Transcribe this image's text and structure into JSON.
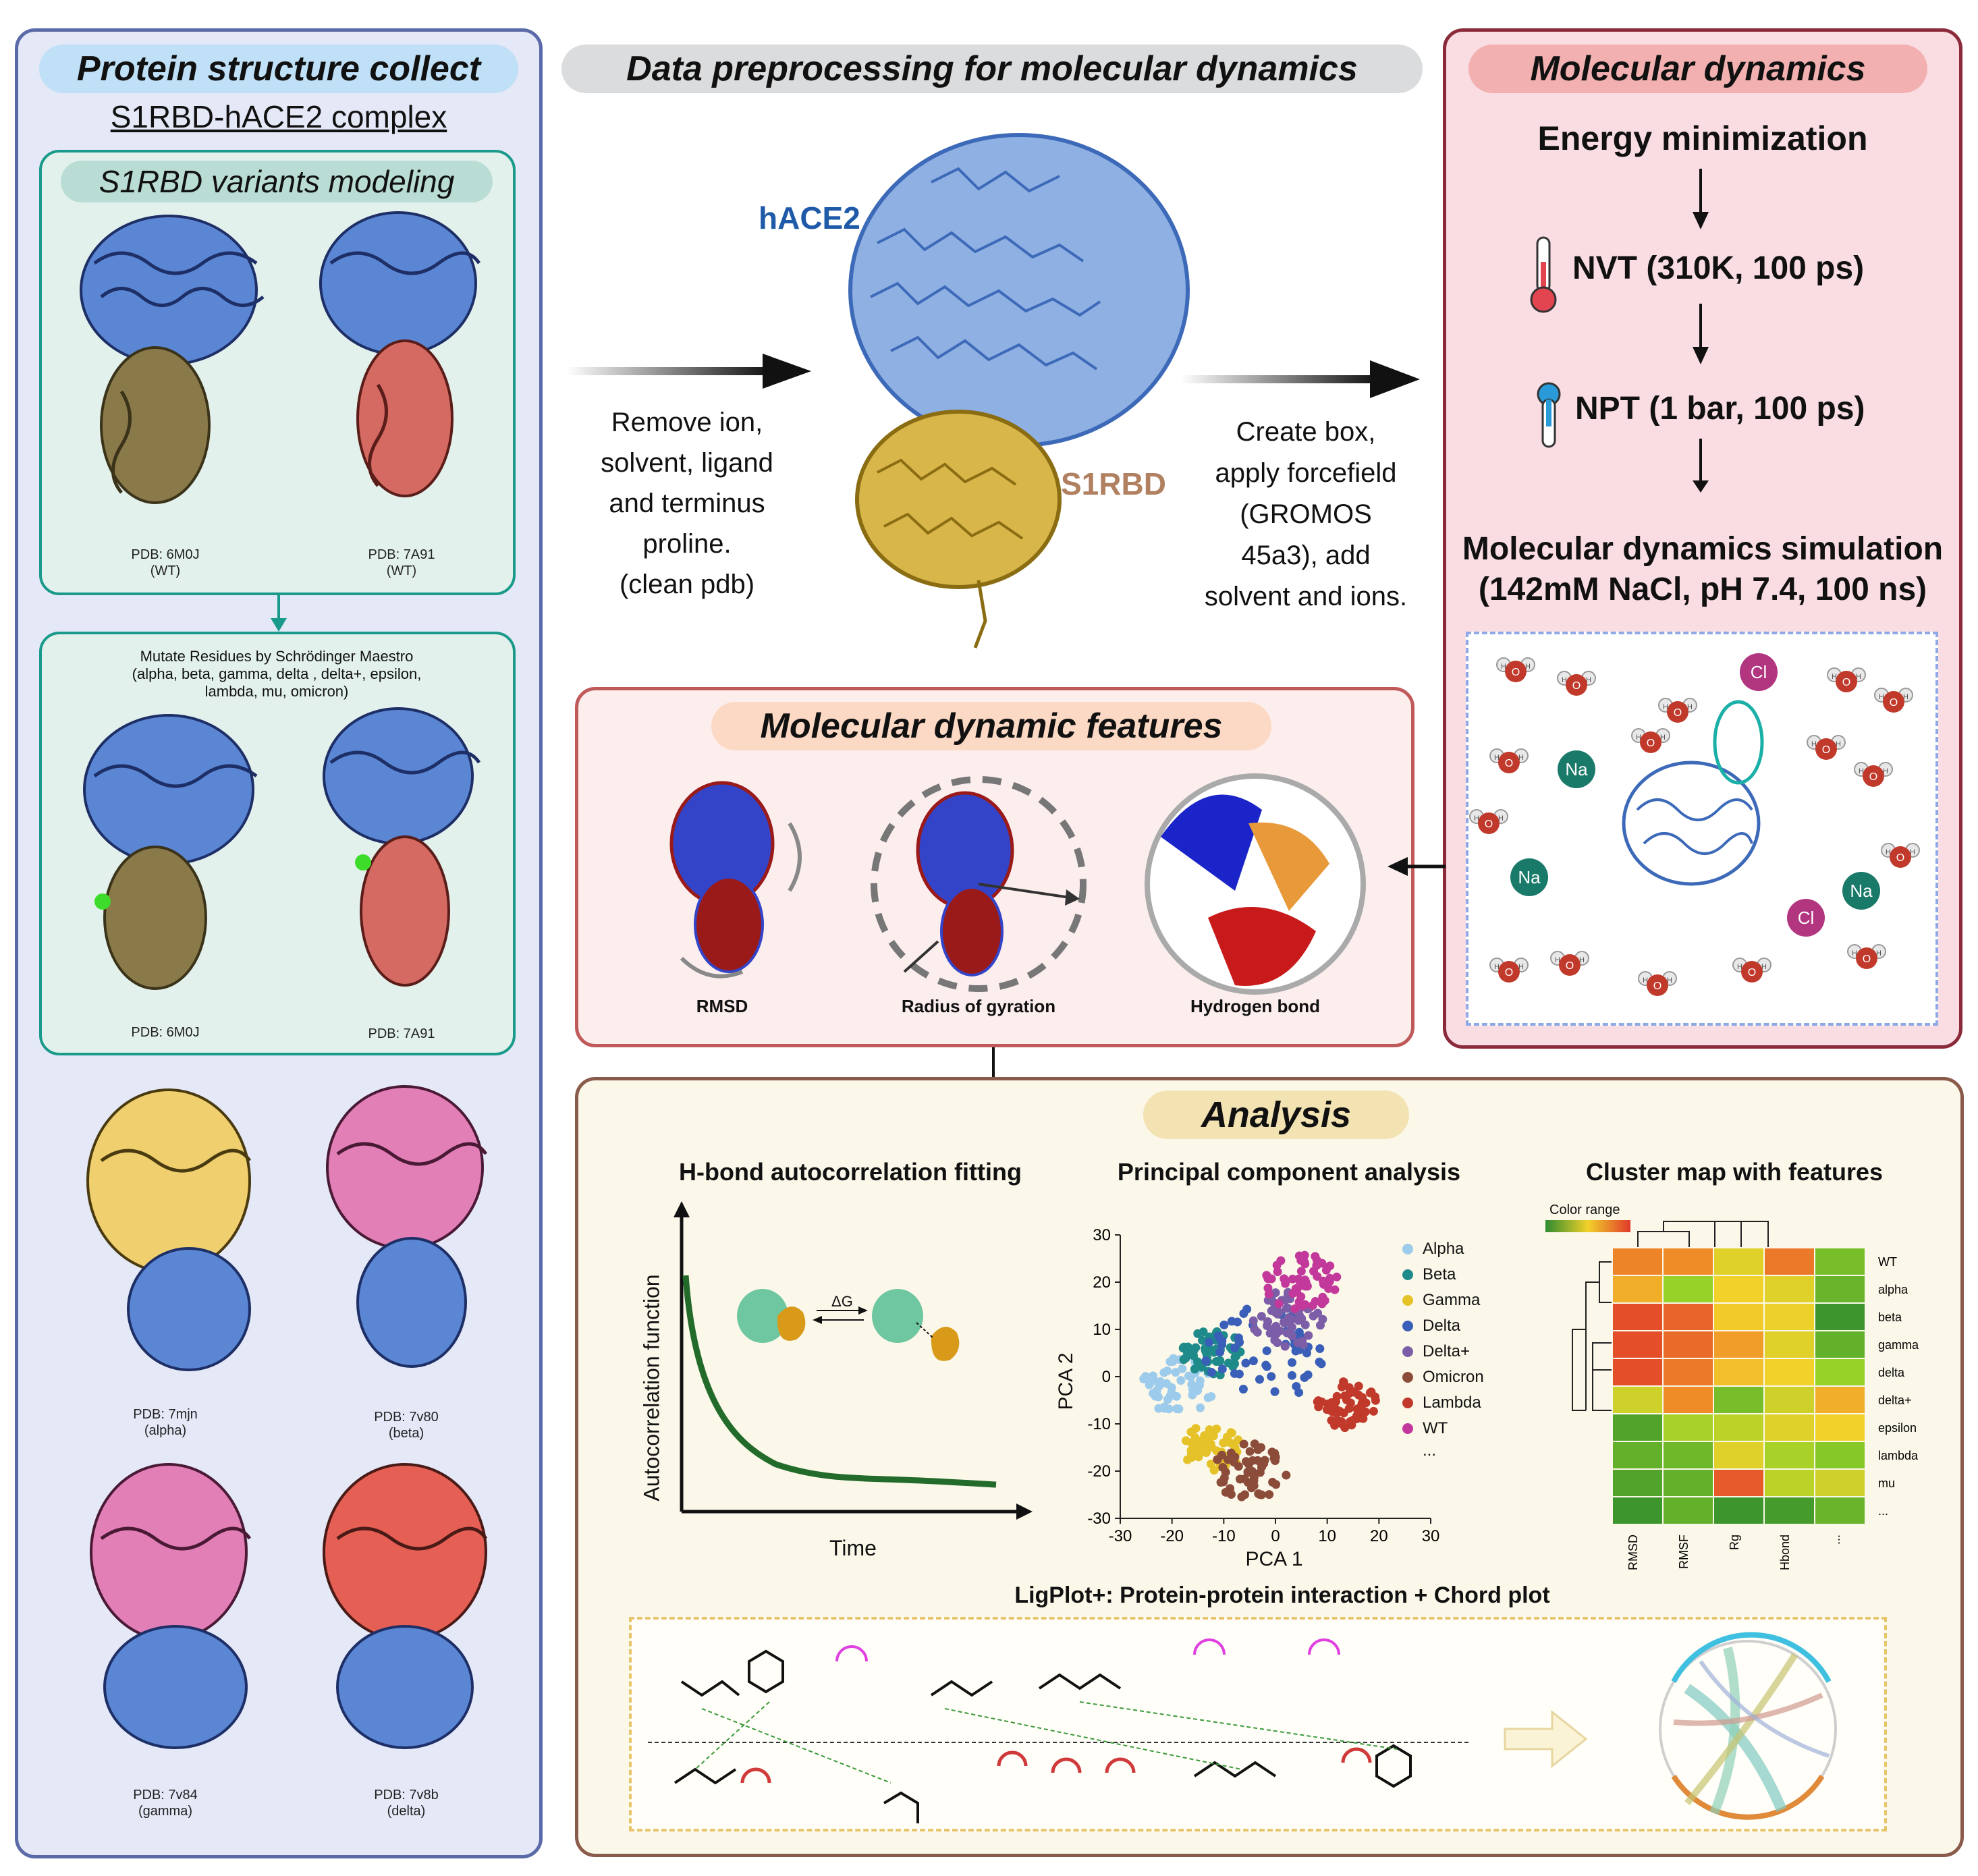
{
  "left": {
    "title": "Protein structure collect",
    "subtitle": "S1RBD-hACE2 complex",
    "modeling_title": "S1RBD variants modeling",
    "wt1_pdb": "PDB: 6M0J",
    "wt1_label": "(WT)",
    "wt2_pdb": "PDB: 7A91",
    "wt2_label": "(WT)",
    "mutate_line1": "Mutate Residues by Schrödinger Maestro",
    "mutate_line2": "(alpha, beta, gamma, delta , delta+, epsilon,",
    "mutate_line3": "lambda, mu, omicron)",
    "mut1_pdb": "PDB: 6M0J",
    "mut2_pdb": "PDB: 7A91",
    "v1_pdb": "PDB: 7mjn",
    "v1_label": "(alpha)",
    "v2_pdb": "PDB: 7v80",
    "v2_label": "(beta)",
    "v3_pdb": "PDB: 7v84",
    "v3_label": "(gamma)",
    "v4_pdb": "PDB: 7v8b",
    "v4_label": "(delta)"
  },
  "prep": {
    "title": "Data preprocessing for molecular dynamics",
    "hace2": "hACE2",
    "s1rbd": "S1RBD",
    "step1": [
      "Remove ion,",
      "solvent, ligand",
      "and terminus",
      "proline.",
      "(clean pdb)"
    ],
    "step2": [
      "Create box,",
      "apply forcefield",
      "(GROMOS",
      "45a3),  add",
      "solvent and ions."
    ]
  },
  "md": {
    "title": "Molecular dynamics",
    "step1": "Energy minimization",
    "step2": "NVT (310K, 100 ps)",
    "step3": "NPT (1 bar, 100 ps)",
    "step4_line1": "Molecular dynamics simulation",
    "step4_line2": "(142mM NaCl, pH 7.4, 100 ns)",
    "na": "Na",
    "cl": "Cl",
    "o": "O",
    "h": "H"
  },
  "features": {
    "title": "Molecular dynamic features",
    "items": [
      "RMSD",
      "Radius of gyration",
      "Hydrogen bond"
    ]
  },
  "analysis": {
    "title": "Analysis",
    "hbond_title": "H-bond autocorrelation fitting",
    "hbond_ylabel": "Autocorrelation function",
    "hbond_xlabel": "Time",
    "delta_g": "ΔG",
    "pca_title": "Principal component analysis",
    "cluster_title": "Cluster map with features",
    "ligplot_title": "LigPlot+: Protein-protein interaction + Chord plot",
    "color_range": "Color range"
  },
  "chart_data": [
    {
      "type": "scatter",
      "title": "Principal component analysis",
      "xlabel": "PCA 1",
      "ylabel": "PCA 2",
      "xlim": [
        -30,
        30
      ],
      "ylim": [
        -30,
        30
      ],
      "xticks": [
        "-30",
        "-20",
        "-10",
        "0",
        "10",
        "20",
        "30"
      ],
      "yticks": [
        "30",
        "20",
        "10",
        "0",
        "-10",
        "-20",
        "-30"
      ],
      "legend_position": "right",
      "series": [
        {
          "name": "Alpha",
          "color": "#9dcbec",
          "cx": -19,
          "cy": -2,
          "spread": 6
        },
        {
          "name": "Beta",
          "color": "#1f8a8a",
          "cx": -12,
          "cy": 5,
          "spread": 5
        },
        {
          "name": "Gamma",
          "color": "#e6c229",
          "cx": -12,
          "cy": -15,
          "spread": 5
        },
        {
          "name": "Delta",
          "color": "#3a5fb8",
          "cx": -2,
          "cy": 5,
          "spread": 10
        },
        {
          "name": "Delta+",
          "color": "#7b5ea7",
          "cx": 2,
          "cy": 12,
          "spread": 6
        },
        {
          "name": "Omicron",
          "color": "#8b4c3a",
          "cx": -5,
          "cy": -20,
          "spread": 6
        },
        {
          "name": "Lambda",
          "color": "#c0392b",
          "cx": 14,
          "cy": -6,
          "spread": 5
        },
        {
          "name": "WT",
          "color": "#c2399b",
          "cx": 5,
          "cy": 20,
          "spread": 6
        }
      ],
      "legend_extra": "..."
    },
    {
      "type": "heatmap",
      "title": "Cluster map with features",
      "rows": [
        "WT",
        "alpha",
        "beta",
        "gamma",
        "delta",
        "delta+",
        "epsilon",
        "lambda",
        "mu",
        "..."
      ],
      "columns": [
        "RMSD",
        "RMSF",
        "Rg",
        "Hbond",
        "..."
      ],
      "colorbar_label": "Color range",
      "values": [
        [
          0.82,
          0.8,
          0.55,
          0.85,
          0.25
        ],
        [
          0.7,
          0.35,
          0.6,
          0.55,
          0.2
        ],
        [
          0.95,
          0.9,
          0.62,
          0.58,
          0.05
        ],
        [
          0.95,
          0.88,
          0.75,
          0.55,
          0.18
        ],
        [
          0.95,
          0.85,
          0.65,
          0.6,
          0.35
        ],
        [
          0.5,
          0.8,
          0.25,
          0.5,
          0.7
        ],
        [
          0.12,
          0.4,
          0.45,
          0.55,
          0.6
        ],
        [
          0.18,
          0.22,
          0.55,
          0.4,
          0.3
        ],
        [
          0.12,
          0.18,
          0.92,
          0.45,
          0.5
        ],
        [
          0.05,
          0.18,
          0.05,
          0.08,
          0.2
        ]
      ]
    }
  ],
  "colors": {
    "left_panel": "#e4e8f7",
    "left_border": "#5a6aa8",
    "teal_border": "#1a9a8a",
    "teal_fill": "#e3f1ec",
    "md_panel": "#f9dde3",
    "md_border": "#8a2a3a",
    "feat_panel": "#fdeeee",
    "feat_border": "#c05a5a",
    "ana_panel": "#fbf8ea",
    "ana_border": "#8a5a4a",
    "hace2_text": "#1f5aa8",
    "s1rbd_text": "#b08060"
  }
}
